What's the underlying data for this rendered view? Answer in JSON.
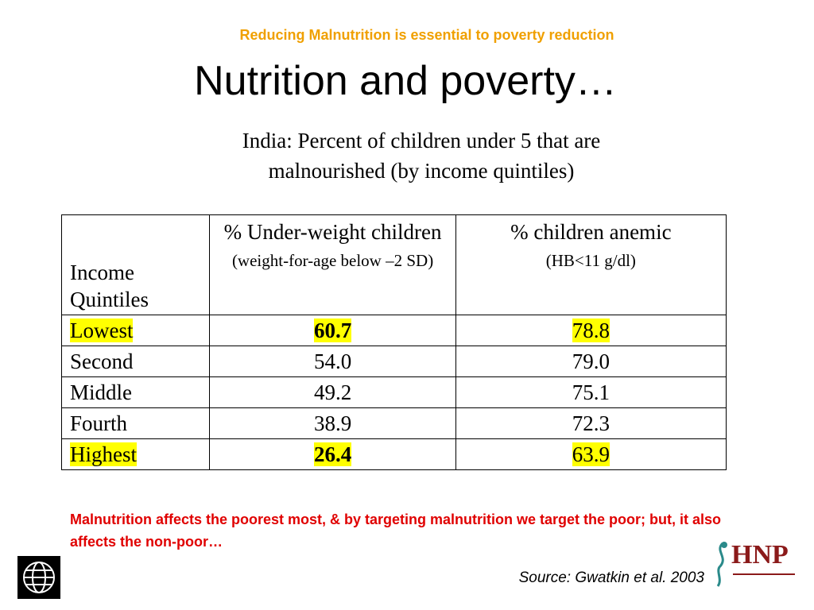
{
  "slide": {
    "tagline": "Reducing Malnutrition is essential to poverty reduction",
    "title": "Nutrition and poverty…",
    "subtitle": "India: Percent of children under 5 that are malnourished (by income quintiles)",
    "table": {
      "header": [
        {
          "main": "Income Quintiles"
        },
        {
          "main": "% Under-weight children",
          "note": "(weight-for-age below –2 SD)"
        },
        {
          "main": "% children anemic",
          "note": "(HB<11 g/dl)"
        }
      ],
      "rows": [
        {
          "quintile": "Lowest",
          "underweight": "60.7",
          "anemic": "78.8",
          "highlight": true
        },
        {
          "quintile": "Second",
          "underweight": "54.0",
          "anemic": "79.0",
          "highlight": false
        },
        {
          "quintile": "Middle",
          "underweight": "49.2",
          "anemic": "75.1",
          "highlight": false
        },
        {
          "quintile": "Fourth",
          "underweight": "38.9",
          "anemic": "72.3",
          "highlight": false
        },
        {
          "quintile": "Highest",
          "underweight": "26.4",
          "anemic": "63.9",
          "highlight": true
        }
      ]
    },
    "footnote": "Malnutrition affects the poorest most, & by targeting malnutrition we target the poor;  but, it also affects the non-poor…",
    "source": "Source: Gwatkin et al. 2003",
    "logo_text": "HNP"
  }
}
